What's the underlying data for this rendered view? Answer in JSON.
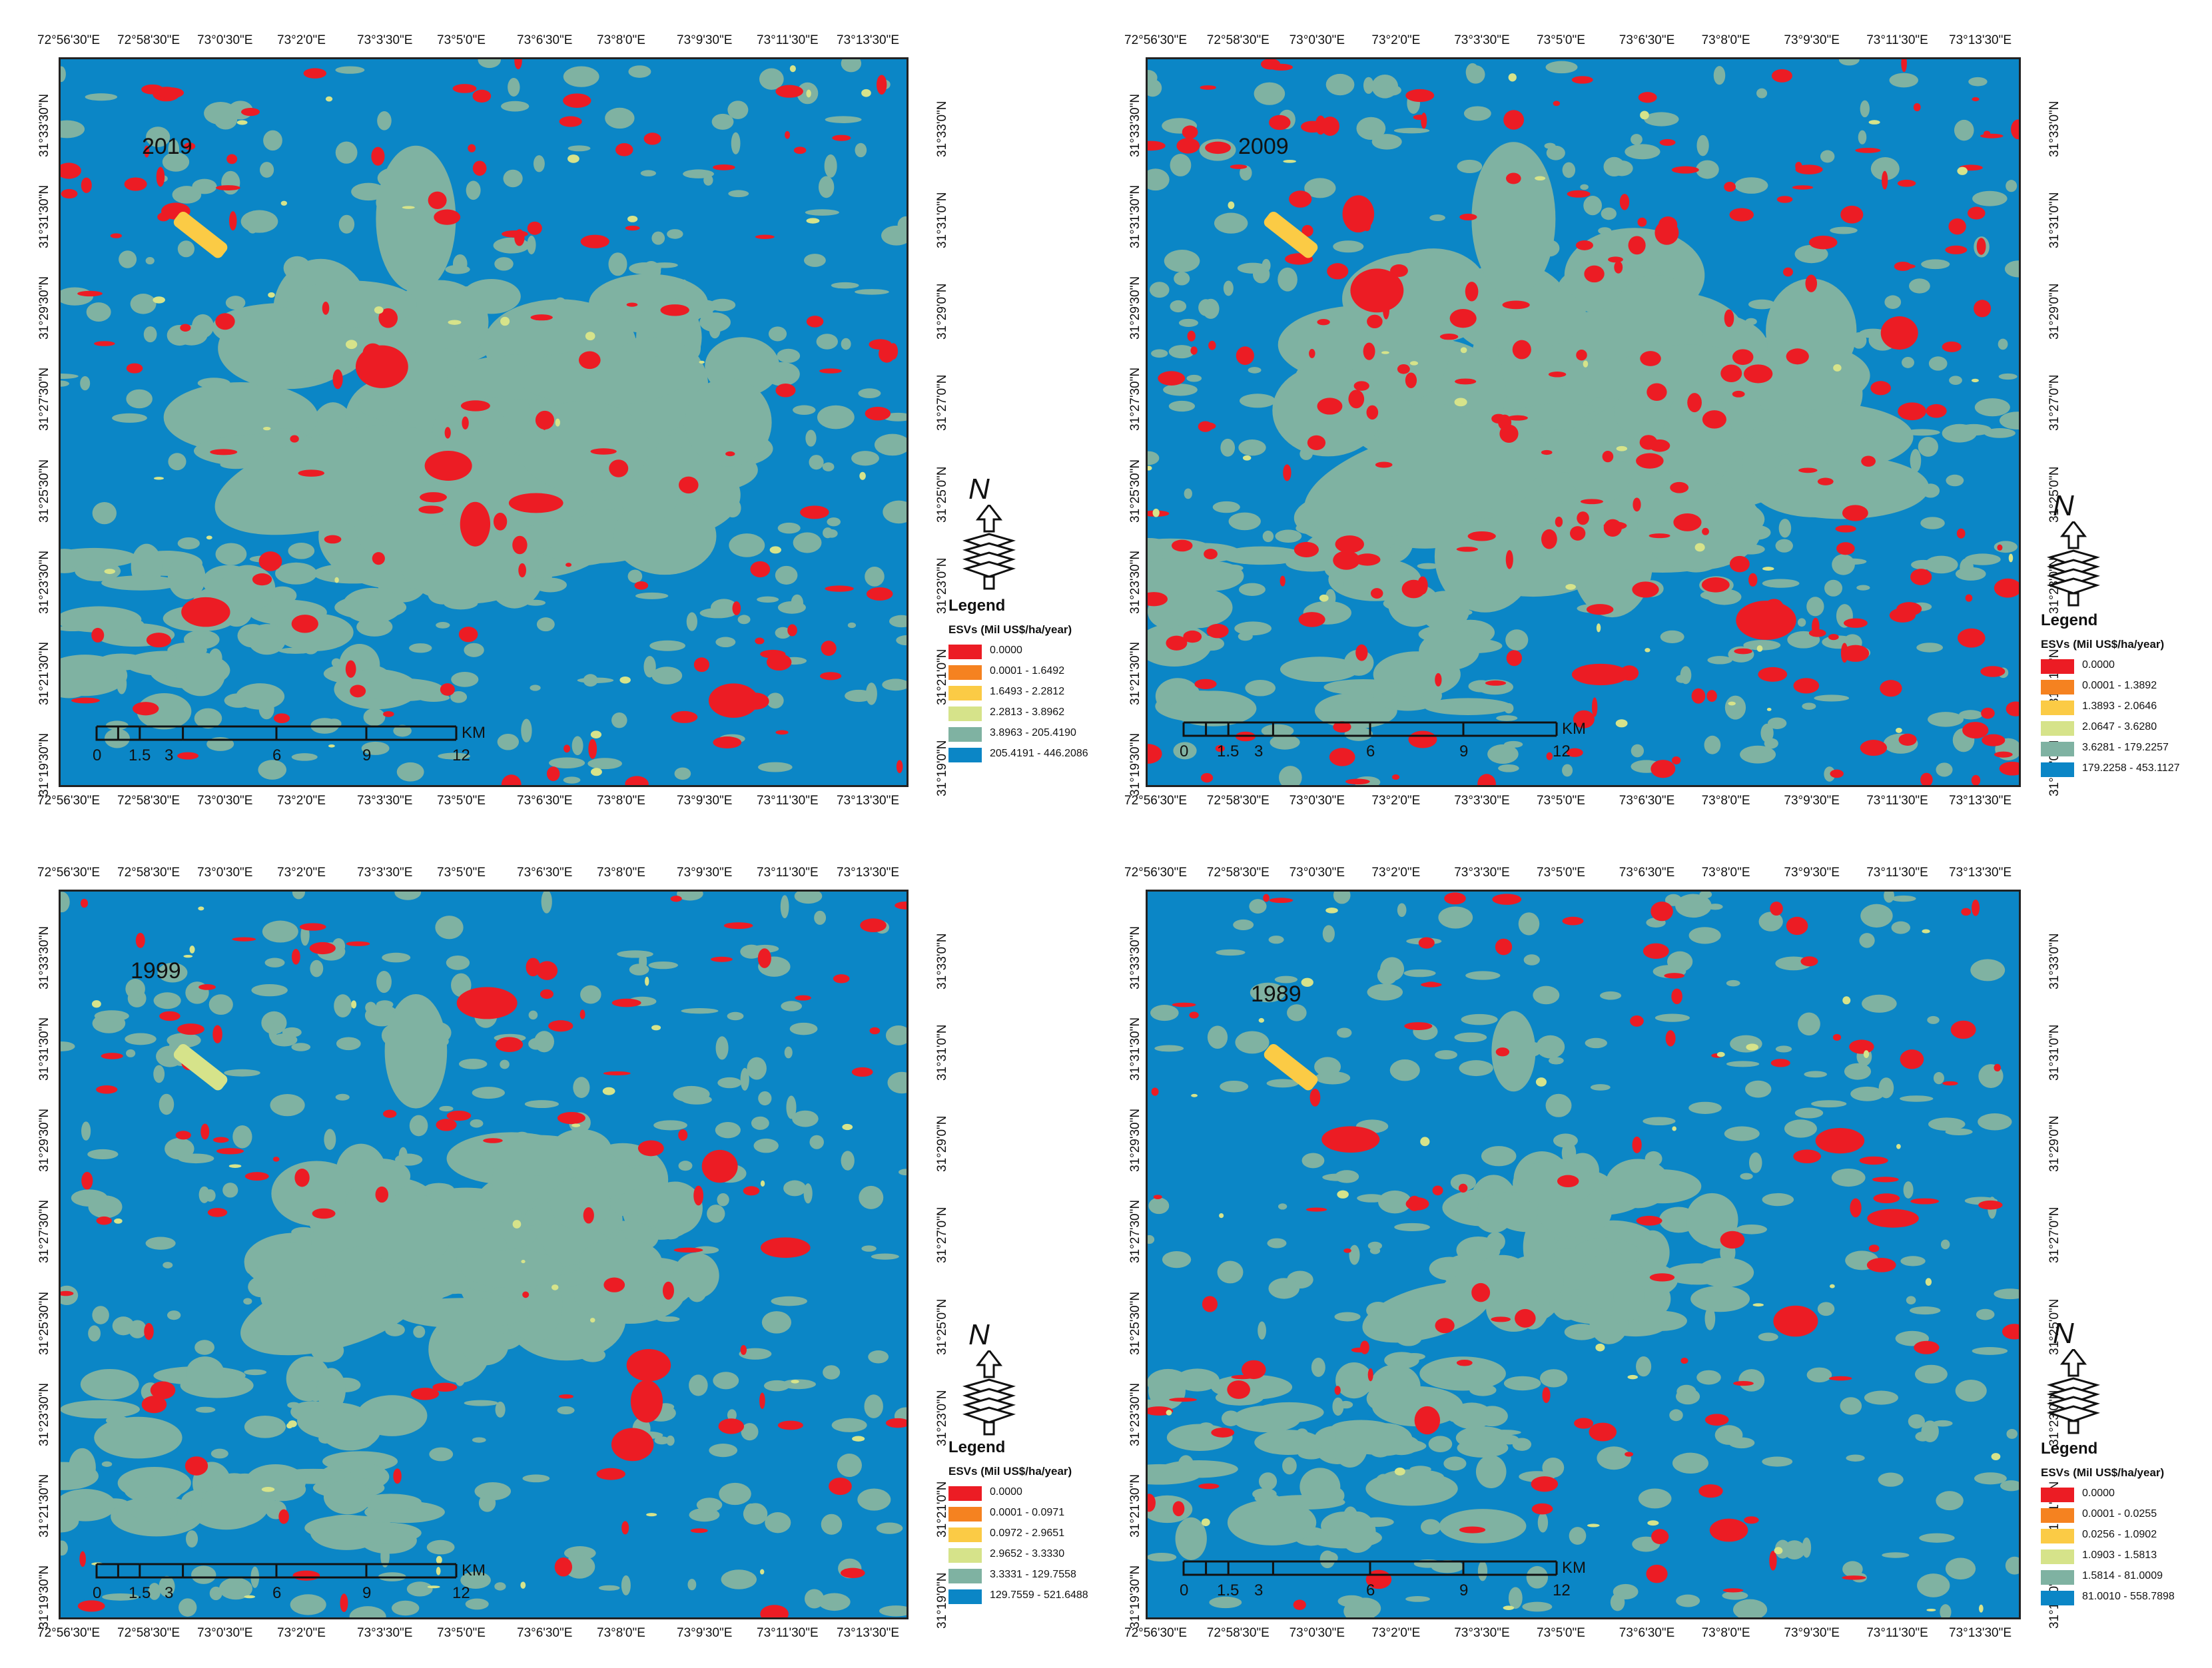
{
  "colors": {
    "cls1": "#ec1c24",
    "cls2": "#f58220",
    "cls3": "#fbcb45",
    "cls4": "#d6e38a",
    "cls5": "#7fb2a2",
    "cls6": "#0b86c6"
  },
  "legend_title": "Legend",
  "legend_units": "ESVs (Mil US$/ha/year)",
  "north_label": "N",
  "scale_unit": "KM",
  "scale_labels": [
    "0",
    "1.5",
    "3",
    "6",
    "9",
    "12"
  ],
  "lon_ticks": [
    "72°56'30\"E",
    "72°58'30\"E",
    "73°0'30\"E",
    "73°2'0\"E",
    "73°3'30\"E",
    "73°5'0\"E",
    "73°6'30\"E",
    "73°8'0\"E",
    "73°9'30\"E",
    "73°11'30\"E",
    "73°13'30\"E"
  ],
  "lat_ticks_left_a": [
    "31°33'30\"N",
    "31°31'30\"N",
    "31°29'30\"N",
    "31°27'30\"N",
    "31°25'30\"N",
    "31°23'30\"N",
    "31°21'30\"N",
    "31°19'30\"N"
  ],
  "lat_ticks_left_b": [
    "31°33'30\"N",
    "31°31'30\"N",
    "31°29'30\"N",
    "31°27'30\"N",
    "31°25'30\"N",
    "31°23'30\"N",
    "31°21'30\"N",
    "31°19'30\"N"
  ],
  "lat_ticks_right": [
    "31°33'0\"N",
    "31°31'0\"N",
    "31°29'0\"N",
    "31°27'0\"N",
    "31°25'0\"N",
    "31°23'0\"N",
    "31°21'0\"N",
    "31°19'0\"N"
  ],
  "panels": [
    {
      "year": "2019",
      "legend_ranges": [
        "0.0000",
        "0.0001 - 1.6492",
        "1.6493 - 2.2812",
        "2.2813 - 3.8962",
        "3.8963 - 205.4190",
        "205.4191 - 446.2086"
      ]
    },
    {
      "year": "2009",
      "legend_ranges": [
        "0.0000",
        "0.0001 - 1.3892",
        "1.3893 - 2.0646",
        "2.0647 - 3.6280",
        "3.6281 - 179.2257",
        "179.2258 - 453.1127"
      ]
    },
    {
      "year": "1999",
      "legend_ranges": [
        "0.0000",
        "0.0001 - 0.0971",
        "0.0972 - 2.9651",
        "2.9652 - 3.3330",
        "3.3331 - 129.7558",
        "129.7559 - 521.6488"
      ]
    },
    {
      "year": "1989",
      "legend_ranges": [
        "0.0000",
        "0.0001 - 0.0255",
        "0.0256 - 1.0902",
        "1.0903 - 1.5813",
        "1.5814 - 81.0009",
        "81.0010 - 558.7898"
      ]
    }
  ]
}
